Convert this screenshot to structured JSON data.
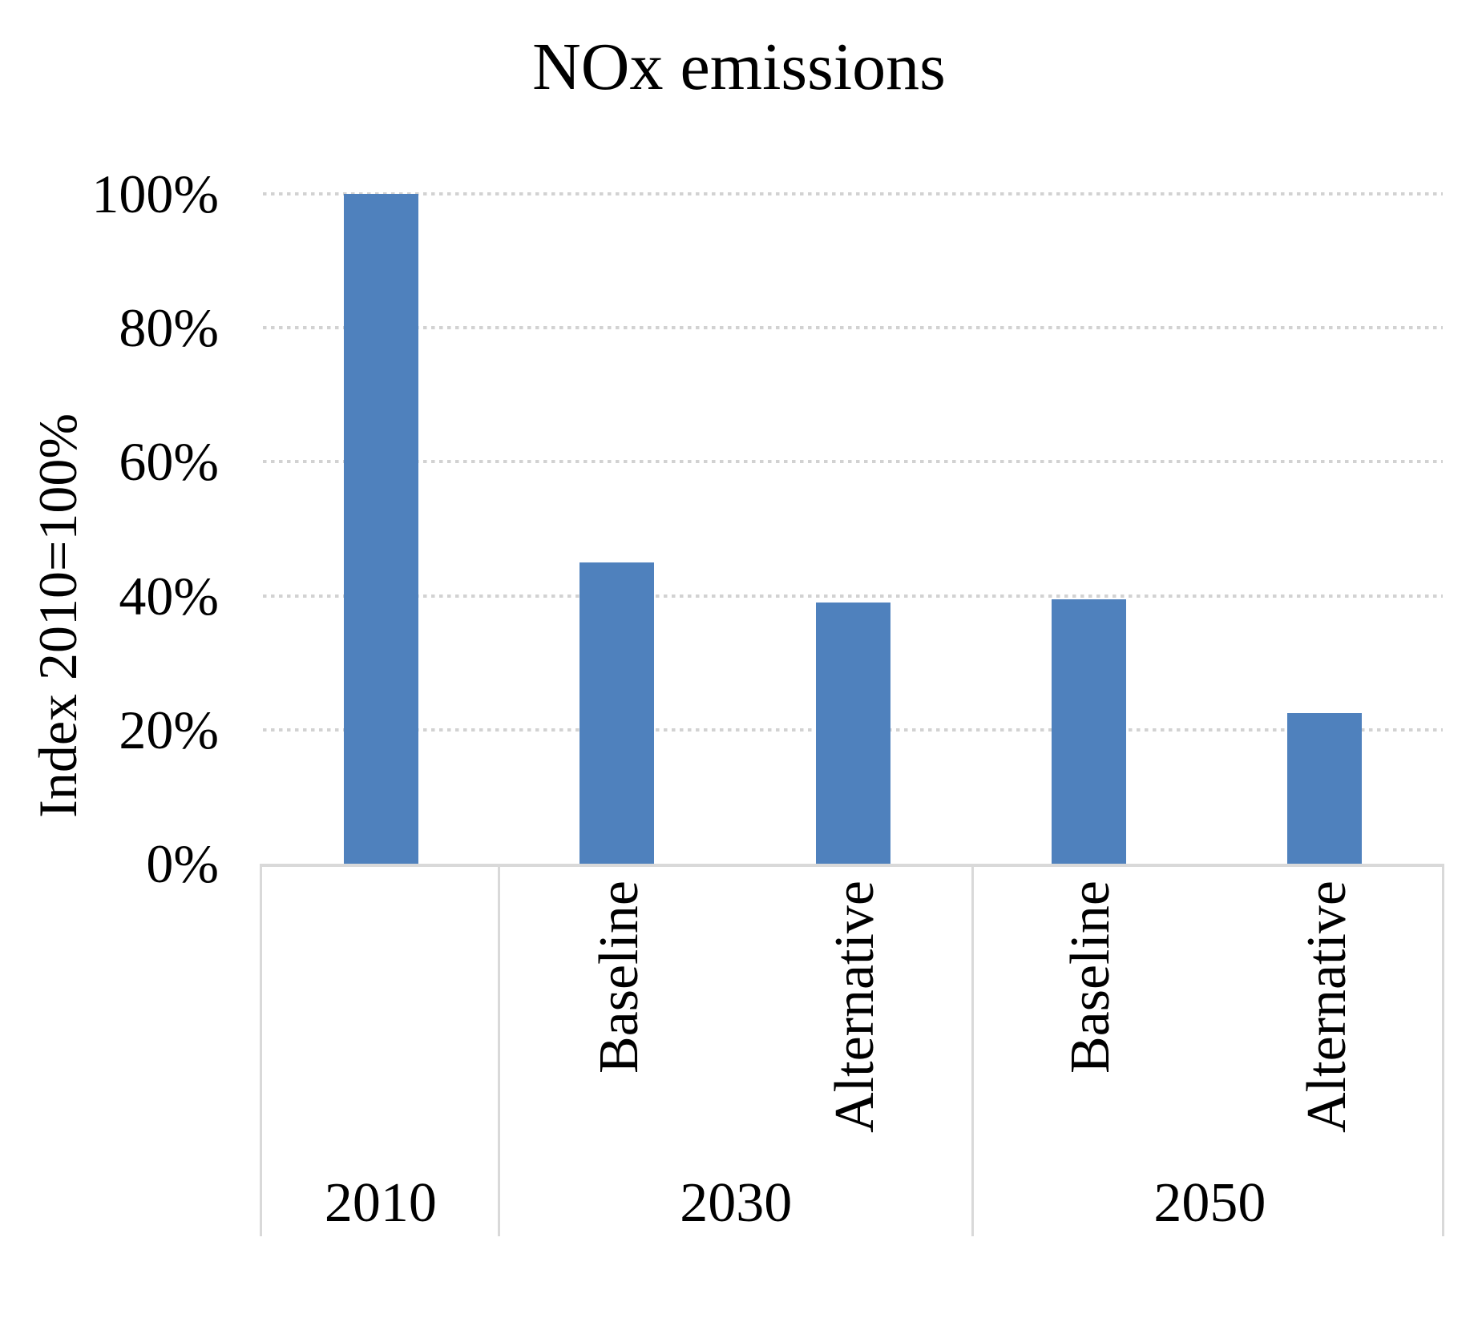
{
  "chart_data": {
    "type": "bar",
    "title": "NOx emissions",
    "ylabel": "Index 2010=100%",
    "ylim": [
      0,
      100
    ],
    "grid": "horizontal-dotted",
    "legend": "none",
    "bar_color": "#4F81BD",
    "axis_color": "#D9D9D9",
    "gridline_color": "#D2D2D2",
    "yticks": [
      {
        "value": 0,
        "label": "0%"
      },
      {
        "value": 20,
        "label": "20%"
      },
      {
        "value": 40,
        "label": "40%"
      },
      {
        "value": 60,
        "label": "60%"
      },
      {
        "value": 80,
        "label": "80%"
      },
      {
        "value": 100,
        "label": "100%"
      }
    ],
    "bars": [
      {
        "group": "2010",
        "scenario": "",
        "value": 100
      },
      {
        "group": "2030",
        "scenario": "Baseline",
        "value": 45
      },
      {
        "group": "2030",
        "scenario": "Alternative",
        "value": 39
      },
      {
        "group": "2050",
        "scenario": "Baseline",
        "value": 39.5
      },
      {
        "group": "2050",
        "scenario": "Alternative",
        "value": 22.5
      }
    ],
    "groups": [
      {
        "label": "2010",
        "span": 1
      },
      {
        "label": "2030",
        "span": 2
      },
      {
        "label": "2050",
        "span": 2
      }
    ]
  }
}
